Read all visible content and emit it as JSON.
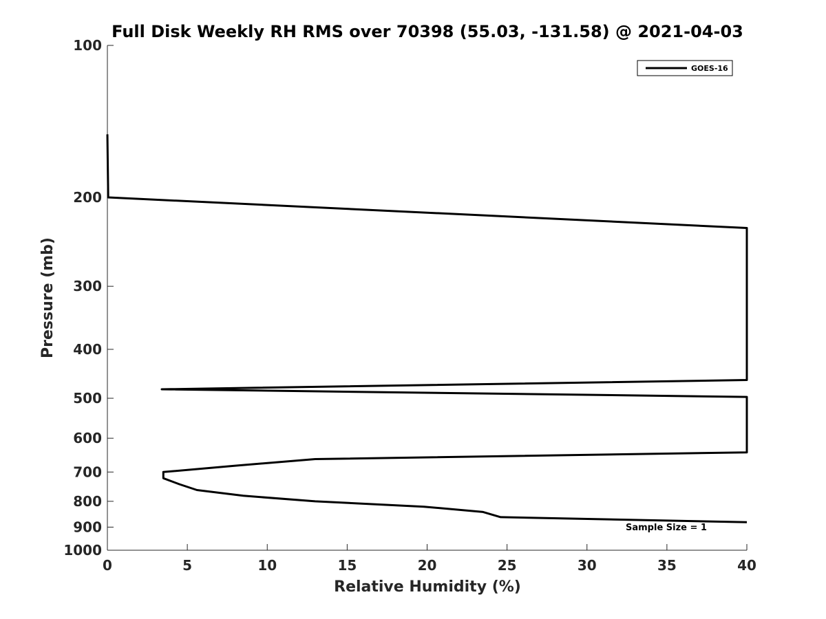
{
  "chart_data": {
    "type": "line",
    "title": "Full Disk Weekly RH RMS over 70398 (55.03, -131.58) @ 2021-04-03",
    "xlabel": "Relative Humidity (%)",
    "ylabel": "Pressure (mb)",
    "xlim": [
      0,
      40
    ],
    "ylim": [
      100,
      1000
    ],
    "y_scale": "log",
    "y_reversed": true,
    "x_ticks": [
      0,
      5,
      10,
      15,
      20,
      25,
      30,
      35,
      40
    ],
    "y_ticks": [
      100,
      200,
      300,
      400,
      500,
      600,
      700,
      800,
      900,
      1000
    ],
    "grid": false,
    "legend_position": "top-right",
    "series": [
      {
        "name": "GOES-16",
        "color": "#000000",
        "points": [
          [
            0.0,
            150
          ],
          [
            0.05,
            200
          ],
          [
            40.0,
            230
          ],
          [
            40.0,
            460
          ],
          [
            3.4,
            480
          ],
          [
            40.0,
            497
          ],
          [
            40.0,
            640
          ],
          [
            13.0,
            660
          ],
          [
            8.0,
            680
          ],
          [
            3.5,
            700
          ],
          [
            3.5,
            720
          ],
          [
            4.5,
            740
          ],
          [
            5.6,
            760
          ],
          [
            8.5,
            780
          ],
          [
            13.0,
            800
          ],
          [
            19.8,
            820
          ],
          [
            23.5,
            840
          ],
          [
            24.6,
            860
          ],
          [
            40.0,
            880
          ]
        ]
      }
    ],
    "annotations": [
      "Sample Size = 1"
    ]
  }
}
